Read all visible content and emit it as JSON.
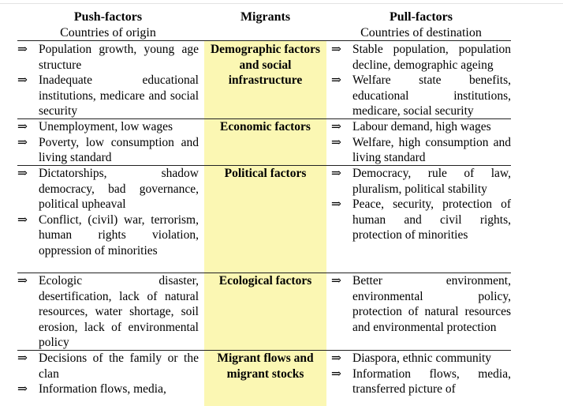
{
  "header": {
    "push_title": "Push-factors",
    "push_sub": "Countries of origin",
    "migrants_title": "Migrants",
    "pull_title": "Pull-factors",
    "pull_sub": "Countries of destination"
  },
  "arrow": "⇒",
  "rows": [
    {
      "category": "Demographic factors and social infrastructure",
      "push": [
        "Population growth, young age structure",
        "Inadequate educational institutions, medicare and social security"
      ],
      "pull": [
        "Stable population, population decline, demographic ageing",
        "Welfare state benefits, educational institutions, medicare, social security"
      ]
    },
    {
      "category": "Economic factors",
      "push": [
        "Unemployment, low wages",
        "Poverty, low consumption and living standard"
      ],
      "pull": [
        "Labour demand, high wages",
        "Welfare, high consumption and living standard"
      ]
    },
    {
      "category": "Political factors",
      "push": [
        "Dictatorships, shadow democracy, bad governance, political upheaval",
        "Conflict, (civil) war, terrorism, human rights violation, oppression of minorities"
      ],
      "pull": [
        "Democracy, rule of law, pluralism, political stability",
        "Peace, security, protection of human and civil rights, protection of minorities"
      ]
    },
    {
      "category": "Ecological factors",
      "push": [
        "Ecologic disaster, desertification, lack of natural resources, water shortage, soil erosion, lack of environmental policy"
      ],
      "pull": [
        "Better environment, environmental policy, protection of natural resources and environmental protection"
      ]
    },
    {
      "category": "Migrant flows and migrant stocks",
      "push": [
        "Decisions of the family or the clan",
        "Information flows, media,"
      ],
      "pull": [
        "Diaspora, ethnic community",
        "Information flows, media, transferred picture of"
      ]
    }
  ]
}
